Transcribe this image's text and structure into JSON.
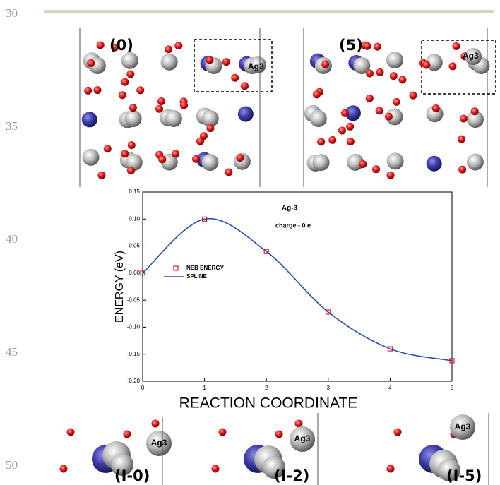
{
  "line_numbers": [
    "30",
    "35",
    "40",
    "45",
    "50"
  ],
  "top_panels": [
    {
      "label": "(0)",
      "atom_label": "Ag3"
    },
    {
      "label": "(5)",
      "atom_label": "Ag3"
    }
  ],
  "chart_data": {
    "type": "line",
    "title": "Ag-3",
    "subtitle": "charge - 0 e",
    "x_label": "REACTION COORDINATE",
    "y_label": "ENERGY (eV)",
    "x": [
      0,
      1,
      2,
      3,
      4,
      5
    ],
    "series": [
      {
        "name": "NEB ENERGY",
        "color": "#e0201c",
        "marker": "square",
        "values": [
          0,
          0.1,
          0.04,
          -0.072,
          -0.14,
          -0.162
        ]
      },
      {
        "name": "SPLINE",
        "color": "#2a49b8",
        "smooth": true,
        "values": [
          0,
          0.1,
          0.04,
          -0.072,
          -0.14,
          -0.162
        ]
      }
    ],
    "xlim": [
      0,
      5
    ],
    "xticks": [
      0,
      1,
      2,
      3,
      4,
      5
    ],
    "ylim": [
      -0.2,
      0.15
    ],
    "yticks": [
      0.15,
      {
        "value": 0.1,
        "label": "0.10"
      },
      0.05,
      {
        "value": 0,
        "label": "0.00"
      },
      -0.05,
      {
        "value": -0.1,
        "label": "-0.10"
      },
      -0.15,
      {
        "value": -0.2,
        "label": "-0.20"
      }
    ]
  },
  "bottom_panels": [
    {
      "label": "(I-0)",
      "atom_label": "Ag3"
    },
    {
      "label": "(I-2)",
      "atom_label": "Ag3"
    },
    {
      "label": "(I-5)",
      "atom_label": "Ag3"
    }
  ]
}
